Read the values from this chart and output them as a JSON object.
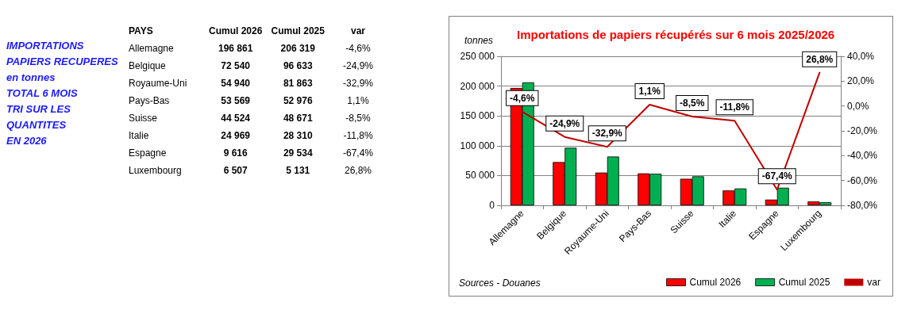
{
  "chart_data": [
    {
      "type": "other",
      "annotations": [
        "IMPORTATIONS\nPAPIERS RECUPERES\nen tonnes\nTOTAL 6 MOIS\nTRI SUR LES\nQUANTITES\nEN 2026",
        "PAYS",
        "Cumul 2026",
        "Cumul 2025",
        "var",
        "Allemagne",
        "196 861",
        "206 319",
        "-4,6%",
        "Belgique",
        "72 540",
        "96 633",
        "-24,9%",
        "Royaume-Uni",
        "54 940",
        "81 863",
        "-32,9%",
        "Pays-Bas",
        "53 569",
        "52 976",
        "1,1%",
        "Suisse",
        "44 524",
        "48 671",
        "-8,5%",
        "Italie",
        "24 969",
        "28 310",
        "-11,8%",
        "Espagne",
        "9 616",
        "29 534",
        "-67,4%",
        "Luxembourg",
        "6 507",
        "5 131",
        "26,8%"
      ]
    },
    {
      "type": "bar",
      "title": "Importations de papiers récupérés sur 6 mois 2025/2026",
      "ylabel": "tonnes",
      "annotations": [
        "Sources - Douanes"
      ],
      "categories": [
        "Allemagne",
        "Belgique",
        "Royaume-Uni",
        "Pays-Bas",
        "Suisse",
        "Italie",
        "Espagne",
        "Luxembourg"
      ],
      "series": [
        {
          "name": "Cumul 2026",
          "color": "#ff0000",
          "values": [
            196861,
            72540,
            54940,
            53569,
            44524,
            24969,
            9616,
            6507
          ]
        },
        {
          "name": "Cumul 2025",
          "color": "#00b050",
          "values": [
            206319,
            96633,
            81863,
            52976,
            48671,
            28310,
            29534,
            5131
          ]
        },
        {
          "name": "var",
          "type": "line",
          "axis": "y2",
          "color": "#c00000",
          "values": [
            -4.6,
            -24.9,
            -32.9,
            1.1,
            -8.5,
            -11.8,
            -67.4,
            26.8
          ],
          "value_labels": [
            "-4,6%",
            "-24,9%",
            "-32,9%",
            "1,1%",
            "-8,5%",
            "-11,8%",
            "-67,4%",
            "26,8%"
          ]
        }
      ],
      "ylim": [
        0,
        250000
      ],
      "yticks": [
        {
          "value": 0,
          "label": "0"
        },
        {
          "value": 50000,
          "label": "50 000"
        },
        {
          "value": 100000,
          "label": "100 000"
        },
        {
          "value": 150000,
          "label": "150 000"
        },
        {
          "value": 200000,
          "label": "200 000"
        },
        {
          "value": 250000,
          "label": "250 000"
        }
      ],
      "y2lim": [
        -80,
        40
      ],
      "y2ticks": [
        {
          "value": -80,
          "label": "-80,0%"
        },
        {
          "value": -60,
          "label": "-60,0%"
        },
        {
          "value": -40,
          "label": "-40,0%"
        },
        {
          "value": -20,
          "label": "-20,0%"
        },
        {
          "value": 0,
          "label": "0,0%"
        },
        {
          "value": 20,
          "label": "20,0%"
        },
        {
          "value": 40,
          "label": "40,0%"
        }
      ],
      "grid": "y",
      "legend": "bottom right",
      "marker": "none",
      "line_style": "solid"
    }
  ]
}
